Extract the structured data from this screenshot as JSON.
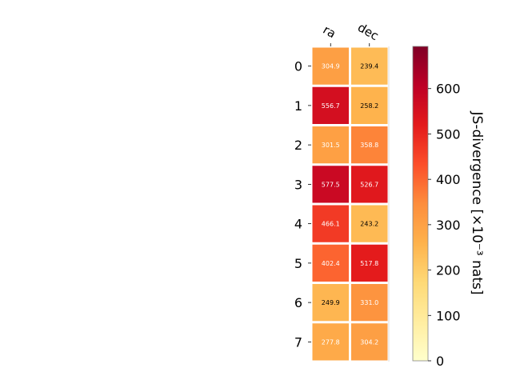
{
  "chart_data": {
    "type": "heatmap",
    "columns": [
      "ra",
      "dec"
    ],
    "rows": [
      "0",
      "1",
      "2",
      "3",
      "4",
      "5",
      "6",
      "7"
    ],
    "values": [
      [
        304.9,
        239.4
      ],
      [
        556.7,
        258.2
      ],
      [
        301.5,
        358.8
      ],
      [
        577.5,
        526.7
      ],
      [
        466.1,
        243.2
      ],
      [
        402.4,
        517.8
      ],
      [
        249.9,
        331.0
      ],
      [
        277.8,
        304.2
      ]
    ],
    "value_labels": [
      [
        "304.9",
        "239.4"
      ],
      [
        "556.7",
        "258.2"
      ],
      [
        "301.5",
        "358.8"
      ],
      [
        "577.5",
        "526.7"
      ],
      [
        "466.1",
        "243.2"
      ],
      [
        "402.4",
        "517.8"
      ],
      [
        "249.9",
        "331.0"
      ],
      [
        "277.8",
        "304.2"
      ]
    ],
    "colorbar": {
      "label": "JS-divergence [×10⁻³ nats]",
      "min": 0,
      "max": 693,
      "ticks": [
        "0",
        "100",
        "200",
        "300",
        "400",
        "500",
        "600"
      ],
      "colormap": "YlOrRd"
    }
  }
}
